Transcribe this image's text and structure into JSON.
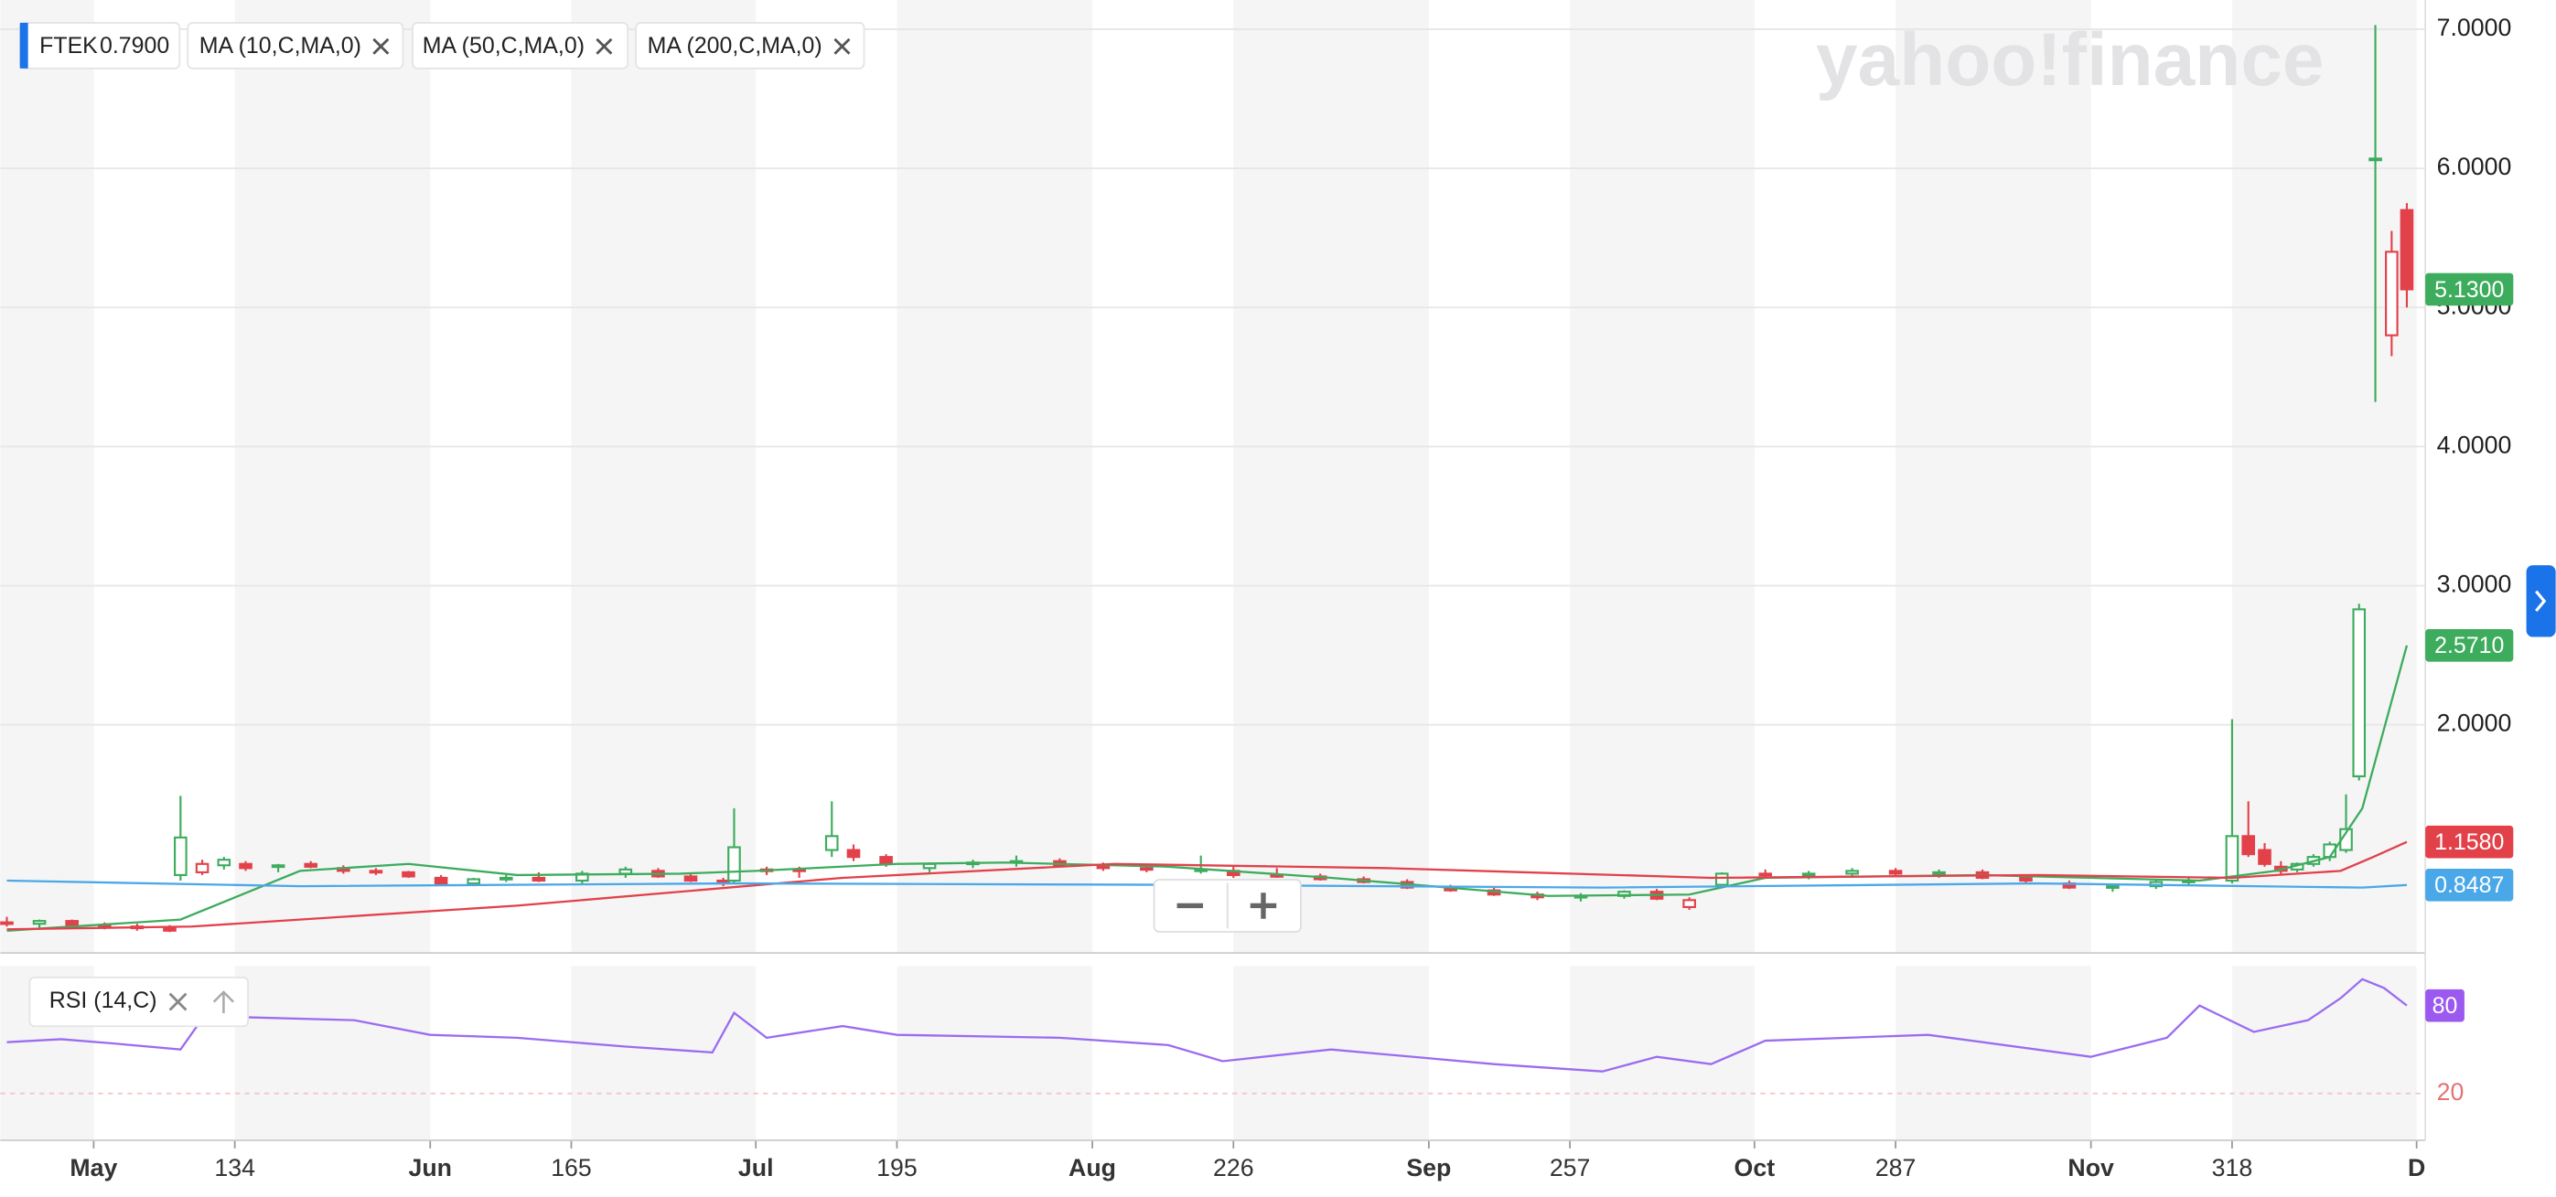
{
  "watermark": "yahoo!finance",
  "chart_data": [
    {
      "type": "candlestick",
      "symbol": "FTEK",
      "legend_value": "0.7900",
      "xlim": [
        112.4,
        335.8
      ],
      "ylim": [
        0.36,
        7.21
      ],
      "yticks": [
        {
          "value": 2,
          "label": "2.0000"
        },
        {
          "value": 3,
          "label": "3.0000"
        },
        {
          "value": 4,
          "label": "4.0000"
        },
        {
          "value": 5,
          "label": "5.0000"
        },
        {
          "value": 6,
          "label": "6.0000"
        },
        {
          "value": 7,
          "label": "7.0000"
        }
      ],
      "grid": true,
      "up_color": "#3dac5d",
      "down_color": "#e2414a",
      "x": [
        113,
        116,
        119,
        122,
        125,
        128,
        129,
        131,
        133,
        135,
        138,
        141,
        144,
        147,
        150,
        153,
        156,
        159,
        162,
        166,
        170,
        173,
        176,
        179,
        180,
        183,
        186,
        189,
        191,
        194,
        198,
        202,
        206,
        210,
        214,
        218,
        223,
        226,
        230,
        234,
        238,
        242,
        246,
        250,
        254,
        258,
        262,
        265,
        268,
        271,
        275,
        279,
        283,
        287,
        291,
        295,
        299,
        303,
        307,
        311,
        314,
        318,
        319.5,
        321,
        322.5,
        324,
        325.5,
        327,
        328.5,
        329.7,
        331.2,
        332.7,
        334.1
      ],
      "open": [
        0.58,
        0.57,
        0.59,
        0.56,
        0.55,
        0.54,
        0.92,
        0.94,
        0.99,
        1.0,
        0.98,
        1.0,
        0.97,
        0.95,
        0.94,
        0.9,
        0.86,
        0.89,
        0.9,
        0.88,
        0.93,
        0.95,
        0.91,
        0.88,
        0.88,
        0.95,
        0.96,
        1.1,
        1.1,
        1.05,
        0.97,
        1.0,
        1.01,
        1.02,
        0.99,
        0.97,
        0.95,
        0.95,
        0.92,
        0.91,
        0.89,
        0.87,
        0.83,
        0.81,
        0.78,
        0.76,
        0.77,
        0.8,
        0.69,
        0.85,
        0.93,
        0.92,
        0.93,
        0.95,
        0.93,
        0.94,
        0.9,
        0.86,
        0.83,
        0.84,
        0.87,
        0.88,
        1.2,
        1.1,
        0.98,
        0.96,
        1.0,
        1.05,
        1.1,
        1.63,
        6.07,
        4.8,
        5.7
      ],
      "high": [
        0.62,
        0.6,
        0.6,
        0.58,
        0.57,
        0.56,
        1.49,
        1.03,
        1.05,
        1.02,
        1.0,
        1.02,
        0.99,
        0.97,
        0.95,
        0.92,
        0.9,
        0.92,
        0.94,
        0.95,
        0.98,
        0.97,
        0.93,
        0.9,
        1.4,
        0.98,
        0.98,
        1.45,
        1.14,
        1.07,
        1.01,
        1.03,
        1.06,
        1.04,
        1.01,
        1.0,
        1.06,
        0.98,
        0.97,
        0.93,
        0.91,
        0.89,
        0.85,
        0.83,
        0.8,
        0.79,
        0.81,
        0.82,
        0.76,
        0.94,
        0.96,
        0.95,
        0.97,
        0.97,
        0.96,
        0.96,
        0.92,
        0.88,
        0.86,
        0.89,
        0.9,
        2.04,
        1.45,
        1.15,
        1.02,
        1.01,
        1.07,
        1.16,
        1.5,
        2.87,
        7.03,
        5.55,
        5.75
      ],
      "low": [
        0.55,
        0.54,
        0.55,
        0.53,
        0.52,
        0.51,
        0.88,
        0.92,
        0.96,
        0.95,
        0.94,
        0.97,
        0.93,
        0.92,
        0.9,
        0.85,
        0.84,
        0.87,
        0.87,
        0.86,
        0.9,
        0.9,
        0.87,
        0.84,
        0.86,
        0.92,
        0.9,
        1.05,
        1.02,
        0.98,
        0.94,
        0.97,
        0.98,
        0.98,
        0.95,
        0.94,
        0.93,
        0.9,
        0.9,
        0.88,
        0.86,
        0.82,
        0.8,
        0.77,
        0.74,
        0.73,
        0.75,
        0.74,
        0.67,
        0.84,
        0.9,
        0.89,
        0.9,
        0.91,
        0.9,
        0.89,
        0.86,
        0.82,
        0.8,
        0.82,
        0.85,
        0.86,
        1.05,
        0.98,
        0.92,
        0.94,
        0.98,
        1.02,
        1.08,
        1.6,
        4.32,
        4.65,
        5.0
      ],
      "close": [
        0.57,
        0.59,
        0.56,
        0.55,
        0.54,
        0.52,
        1.19,
        1.0,
        1.03,
        0.97,
        0.99,
        0.98,
        0.95,
        0.94,
        0.91,
        0.86,
        0.89,
        0.9,
        0.88,
        0.93,
        0.96,
        0.91,
        0.88,
        0.86,
        1.12,
        0.96,
        0.95,
        1.2,
        1.05,
        1.0,
        1.0,
        1.01,
        1.02,
        0.99,
        0.97,
        0.96,
        0.96,
        0.92,
        0.91,
        0.89,
        0.87,
        0.83,
        0.81,
        0.78,
        0.76,
        0.77,
        0.8,
        0.75,
        0.74,
        0.93,
        0.92,
        0.93,
        0.95,
        0.93,
        0.94,
        0.9,
        0.88,
        0.83,
        0.84,
        0.87,
        0.88,
        1.2,
        1.07,
        1.0,
        0.95,
        1.0,
        1.05,
        1.14,
        1.25,
        2.83,
        6.07,
        5.4,
        5.13
      ],
      "series": [
        {
          "name": "MA (10,C,MA,0)",
          "color": "#3dac5d",
          "x": [
            113,
            129,
            140,
            150,
            160,
            175,
            182,
            195,
            205,
            220,
            235,
            255,
            268,
            275,
            295,
            315,
            322,
            327,
            330,
            334.1
          ],
          "values": [
            0.52,
            0.6,
            0.95,
            1.0,
            0.92,
            0.93,
            0.95,
            1.0,
            1.01,
            0.98,
            0.9,
            0.77,
            0.78,
            0.9,
            0.92,
            0.88,
            0.95,
            1.05,
            1.4,
            2.571
          ]
        },
        {
          "name": "MA (50,C,MA,0)",
          "color": "#e2414a",
          "x": [
            113,
            130,
            160,
            190,
            215,
            240,
            270,
            300,
            318,
            328,
            331,
            334.1
          ],
          "values": [
            0.53,
            0.55,
            0.7,
            0.9,
            1.0,
            0.97,
            0.9,
            0.92,
            0.9,
            0.95,
            1.05,
            1.158
          ]
        },
        {
          "name": "MA (200,C,MA,0)",
          "color": "#4aa8e8",
          "x": [
            113,
            140,
            180,
            220,
            260,
            300,
            320,
            330,
            334.1
          ],
          "values": [
            0.88,
            0.84,
            0.86,
            0.85,
            0.83,
            0.86,
            0.84,
            0.83,
            0.8487
          ]
        }
      ],
      "last_labels": [
        {
          "value": 5.13,
          "label": "5.1300",
          "color": "#3dac5d"
        },
        {
          "value": 2.571,
          "label": "2.5710",
          "color": "#3dac5d"
        },
        {
          "value": 1.158,
          "label": "1.1580",
          "color": "#e2414a"
        },
        {
          "value": 0.8487,
          "label": "0.8487",
          "color": "#4aa8e8"
        }
      ]
    },
    {
      "type": "line",
      "name": "RSI (14,C)",
      "xlim": [
        112.4,
        335.8
      ],
      "ylim": [
        -12,
        107
      ],
      "xticks": [
        {
          "value": 121,
          "label": "May"
        },
        134,
        {
          "value": 152,
          "label": "Jun"
        },
        165,
        {
          "value": 182,
          "label": "Jul"
        },
        195,
        {
          "value": 213,
          "label": "Aug"
        },
        226,
        {
          "value": 244,
          "label": "Sep"
        },
        257,
        {
          "value": 274,
          "label": "Oct"
        },
        287,
        {
          "value": 305,
          "label": "Nov"
        },
        318,
        {
          "value": 335,
          "label": "D"
        }
      ],
      "yticks": [
        20
      ],
      "series": [
        {
          "name": "RSI (14,C)",
          "color": "#9b6cf0",
          "x": [
            113,
            118,
            123,
            129,
            131,
            135,
            145,
            152,
            160,
            170,
            178,
            180,
            183,
            190,
            195,
            210,
            220,
            225,
            235,
            250,
            260,
            265,
            270,
            275,
            290,
            305,
            312,
            315,
            320,
            325,
            328,
            330,
            332,
            334.1
          ],
          "values": [
            55,
            57,
            54,
            50,
            71,
            72,
            70,
            60,
            58,
            52,
            48,
            75,
            58,
            66,
            60,
            58,
            53,
            42,
            50,
            40,
            35,
            45,
            40,
            56,
            60,
            45,
            58,
            80,
            62,
            70,
            85,
            98,
            92,
            80
          ]
        }
      ],
      "last_labels": [
        {
          "value": 80,
          "label": "80",
          "color": "#9b59f0"
        }
      ]
    }
  ]
}
